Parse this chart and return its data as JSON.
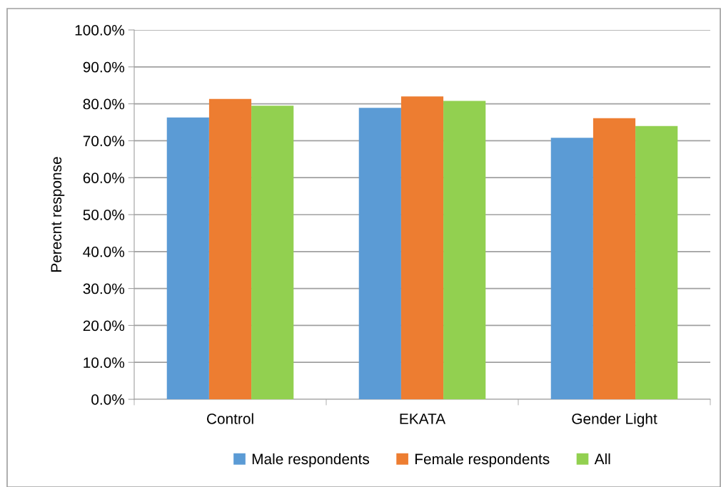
{
  "chart_data": {
    "type": "bar",
    "ylabel": "Perecnt response",
    "categories": [
      "Control",
      "EKATA",
      "Gender Light"
    ],
    "series": [
      {
        "name": "Male respondents",
        "color": "#5b9bd5",
        "values": [
          76.3,
          78.9,
          70.8
        ]
      },
      {
        "name": "Female respondents",
        "color": "#ed7d31",
        "values": [
          81.3,
          82.0,
          76.1
        ]
      },
      {
        "name": "All",
        "color": "#92d050",
        "values": [
          79.5,
          80.8,
          74.0
        ]
      }
    ],
    "ylim": [
      0,
      100
    ],
    "yticks": [
      {
        "value": 0,
        "label": "0.0%"
      },
      {
        "value": 10,
        "label": "10.0%"
      },
      {
        "value": 20,
        "label": "20.0%"
      },
      {
        "value": 30,
        "label": "30.0%"
      },
      {
        "value": 40,
        "label": "40.0%"
      },
      {
        "value": 50,
        "label": "50.0%"
      },
      {
        "value": 60,
        "label": "60.0%"
      },
      {
        "value": 70,
        "label": "70.0%"
      },
      {
        "value": 80,
        "label": "80.0%"
      },
      {
        "value": 90,
        "label": "90.0%"
      },
      {
        "value": 100,
        "label": "100.0%"
      }
    ],
    "grid": "y",
    "legend": "bottom"
  }
}
